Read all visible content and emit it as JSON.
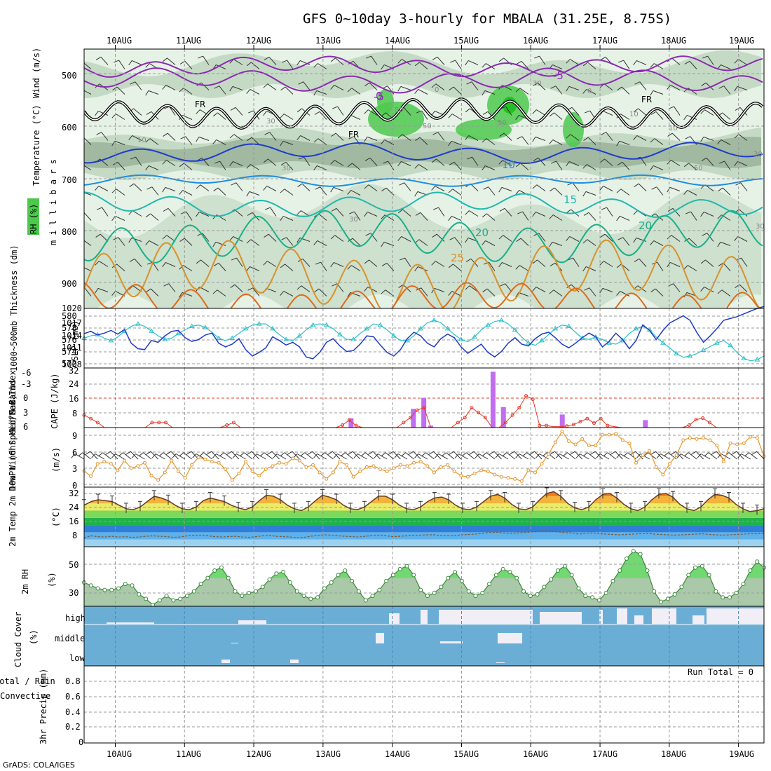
{
  "title": "GFS 0~10day 3-hourly for MBALA (31.25E, 8.75S)",
  "footer": "GrADS: COLA/IGES",
  "run_total": "Run Total = 0",
  "x_labels": [
    "10AUG",
    "11AUG",
    "12AUG",
    "13AUG",
    "14AUG",
    "15AUG",
    "16AUG",
    "17AUG",
    "18AUG",
    "19AUG"
  ],
  "colors": {
    "grid": "#9a9a9a",
    "rh_light": "#e6f2e6",
    "rh_mid": "#b9d2b9",
    "rh_dark": "#93ad93",
    "rh_green": "#4cc94c",
    "cloud": "#6aaed6",
    "cloud_clear": "#f2eef6",
    "cape": "#c26cf0",
    "li": "#e23b2b",
    "slp": "#1e3cc8",
    "thick": "#2ec0c8",
    "wind": "#e8962e",
    "rh2m": "#5cbf5c",
    "rh2m_fill": "#a9c9a9"
  },
  "panels": {
    "upper_air": {
      "ylabel_wind": "Wind (m/s)",
      "ylabel_temp": "Temperature (°C)",
      "ylabel_rh": "RH (%)",
      "ylabel_pressure": "m i l l i b a r s",
      "y_ticks": [
        "500",
        "600",
        "700",
        "800",
        "900"
      ],
      "iso_labels": [
        "-5",
        "0",
        "FR",
        "FR",
        "FR",
        "-5",
        "10",
        "15",
        "20",
        "20",
        "25",
        "10",
        "30",
        "30",
        "30",
        "50",
        "50",
        "50",
        "10",
        "50",
        "10",
        "30",
        "30",
        "0",
        "30",
        "0"
      ]
    },
    "thickness_slp": {
      "ylabel_thick": "1000~500mb Thickness (dm)",
      "ylabel_slp": "SLP (mb)",
      "left_ticks": [
        "580",
        "578",
        "576",
        "574",
        "572"
      ],
      "right_ticks": [
        "1020",
        "1017",
        "1014",
        "1011",
        "1008"
      ]
    },
    "cape_li": {
      "ylabel_li": "Lifted Index",
      "ylabel_cape": "CAPE (J/kg)",
      "left_ticks": [
        "-6",
        "-3",
        "0",
        "3",
        "6"
      ],
      "right_ticks": [
        "32",
        "24",
        "16",
        "8"
      ]
    },
    "wind10m": {
      "ylabel": "10m Wind Speed & Barbs",
      "unit": "(m/s)",
      "ticks": [
        "9",
        "6",
        "3",
        "0"
      ]
    },
    "temp2m": {
      "ylabel": "2m Temp 2m DewPt (6hr Min/Max)",
      "unit": "(°C)",
      "ticks": [
        "32",
        "24",
        "16",
        "8"
      ]
    },
    "rh2m": {
      "ylabel": "2m RH",
      "unit": "(%)",
      "ticks": [
        "50",
        "30"
      ]
    },
    "cloud": {
      "ylabel": "Cloud Cover",
      "unit": "(%)",
      "levels": [
        "high",
        "middle",
        "low"
      ]
    },
    "precip": {
      "ylabel_total": "Total / Rain",
      "ylabel_conv": "Convective",
      "ylabel": "3hr Precip (mm)",
      "ticks": [
        "0.8",
        "0.6",
        "0.4",
        "0.2",
        "0"
      ]
    }
  },
  "chart_data": [
    {
      "type": "line",
      "name": "1000-500mb thickness",
      "unit": "dm",
      "ylim": [
        571,
        581
      ],
      "values": [
        576,
        576.4,
        576.6,
        576,
        575.6,
        576.2,
        577.2,
        578,
        578.4,
        578,
        577.2,
        576.4,
        575.8,
        576,
        576.8,
        577.4,
        578,
        578.2,
        577.8,
        577,
        576,
        575.6,
        576,
        576.8,
        577.6,
        578.2,
        578.4,
        578.4,
        577.6,
        576.6,
        575.8,
        575.6,
        576.4,
        577.4,
        578.2,
        578.4,
        578.2,
        577.6,
        576.6,
        575.8,
        575.8,
        576.8,
        577.6,
        578.4,
        578.2,
        577.4,
        576.4,
        575.6,
        575.6,
        576.4,
        577.6,
        578.6,
        579,
        578.6,
        577.6,
        576.6,
        575.8,
        575.4,
        576.2,
        577.4,
        578.2,
        578.8,
        579,
        578.4,
        577.4,
        576.2,
        575.2,
        574.8,
        575.6,
        576.6,
        577.6,
        578.2,
        578,
        577,
        576,
        575.8,
        576.2,
        575.8,
        575.2,
        575,
        575.6,
        576.8,
        577.6,
        578,
        577.4,
        576.2,
        575.2,
        574.4,
        573.4,
        572.8,
        573,
        573.4,
        574,
        574.6,
        575.2,
        575.6,
        574.8,
        573.6,
        572.6,
        572.2,
        572.4,
        573
      ],
      "xrange": [
        "10AUG",
        "19AUG"
      ]
    },
    {
      "type": "line",
      "name": "SLP",
      "unit": "mb",
      "ylim": [
        1007,
        1020
      ],
      "values": [
        1014.5,
        1015,
        1014.2,
        1014.6,
        1015.2,
        1014.4,
        1015.4,
        1012.4,
        1011.2,
        1011,
        1013,
        1012.6,
        1014,
        1015,
        1015.2,
        1013.6,
        1012.8,
        1013.2,
        1014.2,
        1014.6,
        1012.4,
        1011.6,
        1012.2,
        1013.4,
        1011,
        1009.6,
        1010.4,
        1011.4,
        1013.8,
        1013,
        1012,
        1012.6,
        1011.6,
        1009.4,
        1009,
        1010.4,
        1012.6,
        1013.4,
        1011.8,
        1010.6,
        1010.8,
        1012.2,
        1014,
        1013.8,
        1012,
        1010.4,
        1009.6,
        1011,
        1013.4,
        1014.8,
        1014,
        1012.4,
        1011.6,
        1013.4,
        1014.4,
        1013.6,
        1011.6,
        1010.2,
        1011.2,
        1012.2,
        1010.4,
        1009.4,
        1010.6,
        1012.4,
        1013.6,
        1012.2,
        1011.8,
        1013.4,
        1014.4,
        1014.8,
        1013.6,
        1012.2,
        1011.4,
        1012.4,
        1013.6,
        1014.6,
        1013.8,
        1011.6,
        1012.8,
        1014.6,
        1013.2,
        1011.2,
        1013,
        1016.4,
        1015.2,
        1013.2,
        1015.2,
        1016.8,
        1017.6,
        1018.4,
        1017.4,
        1014.8,
        1012.6,
        1014,
        1015.6,
        1017.4,
        1017.8,
        1018.2,
        1018.8,
        1019.4,
        1020,
        1020.4
      ],
      "xrange": [
        "10AUG",
        "19AUG"
      ]
    },
    {
      "type": "bar",
      "name": "CAPE",
      "unit": "J/kg",
      "ylim": [
        0,
        32
      ],
      "bars": [
        {
          "day": 13.4,
          "value": 5
        },
        {
          "day": 14.3,
          "value": 10
        },
        {
          "day": 14.45,
          "value": 16
        },
        {
          "day": 14.55,
          "value": 1
        },
        {
          "day": 15.45,
          "value": 30
        },
        {
          "day": 15.6,
          "value": 11
        },
        {
          "day": 16.45,
          "value": 7
        },
        {
          "day": 17.65,
          "value": 4
        }
      ]
    },
    {
      "type": "line",
      "name": "Lifted Index",
      "ylim": [
        6,
        -6
      ],
      "values": [
        3.5,
        4.2,
        5,
        6,
        6,
        6,
        6,
        6,
        6,
        6,
        5,
        5,
        5,
        6,
        6,
        6,
        6,
        6,
        6,
        6,
        6,
        5.5,
        5,
        6,
        6,
        6,
        6,
        6,
        6,
        6,
        6,
        6,
        6,
        6,
        6,
        6,
        6,
        6,
        5.5,
        4.5,
        5.6,
        6,
        6,
        6,
        6,
        6,
        6,
        5,
        4,
        2.5,
        2,
        6,
        6,
        6,
        6,
        5,
        4,
        2,
        3,
        4,
        6,
        6,
        5,
        3.5,
        2,
        -0.4,
        0.3,
        5.6,
        5.6,
        5.8,
        5.8,
        5.7,
        5.4,
        4.8,
        4.2,
        5.1,
        4.2,
        5.6,
        5.8,
        6,
        6,
        6,
        6,
        6,
        6,
        6,
        6,
        6,
        6,
        5.5,
        4.4,
        4.1,
        5,
        6,
        6,
        6,
        6,
        6,
        6,
        6,
        6
      ],
      "xrange": [
        "10AUG",
        "19AUG"
      ]
    },
    {
      "type": "line",
      "name": "10m Wind Speed",
      "unit": "m/s",
      "ylim": [
        0,
        10
      ],
      "values": [
        2.5,
        1.5,
        3.8,
        4.2,
        3.8,
        2.6,
        4.4,
        3,
        3.4,
        4,
        1.6,
        0.8,
        2.2,
        4.4,
        2.4,
        1.2,
        3.6,
        5,
        4.6,
        4.2,
        4,
        2.8,
        0.8,
        2,
        4.2,
        2.4,
        1.6,
        2.8,
        3.4,
        4,
        3.8,
        4.8,
        4.4,
        3.2,
        3.6,
        2.2,
        1,
        2.2,
        4.2,
        3.6,
        1.4,
        2.4,
        3.2,
        3.4,
        2.8,
        2.4,
        3,
        3.6,
        3.4,
        4,
        4.2,
        3.4,
        2.2,
        3.2,
        3.6,
        2.4,
        1.6,
        1.4,
        2,
        2.6,
        2.4,
        1.8,
        1.4,
        1.2,
        1,
        0.6,
        2.6,
        2.2,
        3.8,
        5.6,
        7.8,
        9.8,
        8,
        7.4,
        8.4,
        7.2,
        7.2,
        9.2,
        9.2,
        9.4,
        8.2,
        7.6,
        4,
        5.4,
        6.2,
        3.2,
        1.8,
        3.8,
        5.4,
        8.2,
        8.6,
        8.4,
        8.6,
        8.2,
        7.2,
        4.2,
        7.6,
        7.4,
        7.6,
        8.8,
        8.6,
        5.2
      ],
      "xrange": [
        "10AUG",
        "19AUG"
      ]
    },
    {
      "type": "area",
      "name": "2m Temp",
      "unit": "°C",
      "ylim": [
        0,
        33
      ],
      "values": [
        23,
        25,
        26,
        25.5,
        25,
        23,
        21,
        20.5,
        22,
        25,
        28,
        27,
        25.5,
        23,
        21,
        20.5,
        22,
        25.5,
        27,
        26,
        25,
        23,
        21.5,
        20.5,
        22,
        25.5,
        28.5,
        28,
        26,
        23,
        21,
        20,
        22,
        25.5,
        28.5,
        27.5,
        26,
        23,
        21,
        20.5,
        22,
        25,
        28,
        28,
        26,
        23,
        21,
        20.5,
        22,
        25,
        27,
        27.5,
        26,
        23,
        21,
        20.5,
        22,
        25,
        28,
        29,
        27,
        23.5,
        21,
        20.5,
        22,
        26,
        29.5,
        30.5,
        28,
        24,
        21.5,
        20.5,
        22,
        26,
        29,
        29.5,
        27,
        23.5,
        21,
        20,
        22,
        26,
        29,
        29.5,
        27.5,
        23.5,
        21,
        20,
        22,
        26,
        29,
        28.5,
        27,
        23.5,
        21,
        19.5,
        20,
        21
      ],
      "xrange": [
        "10AUG",
        "19AUG"
      ]
    },
    {
      "type": "line",
      "name": "2m DewPt",
      "unit": "°C",
      "values": [
        5,
        6,
        5.6,
        5.4,
        5.8,
        5.4,
        5.6,
        5.2,
        5.4,
        5.8,
        6,
        5.8,
        5.6,
        5.2,
        5.4,
        6,
        6.2,
        6.4,
        6,
        5.6,
        5.4,
        5.6,
        5.8,
        5.4,
        5.2,
        5.6,
        6,
        6.2,
        5.8,
        5.6,
        5.4,
        5,
        5.2,
        5.8,
        6.2,
        6.6,
        6.4,
        6,
        5.8,
        5.6,
        5.4,
        5.8,
        6.2,
        6.4,
        6,
        5.6,
        5.8,
        6,
        6.2,
        6.4,
        6.6,
        6.6,
        6.2,
        6,
        6.2,
        6.6,
        6.8,
        7,
        7.4,
        7.8,
        8,
        7.6,
        7.4,
        7.6,
        7.8,
        8.2,
        8.4,
        8.8,
        8.6,
        8.2,
        7.8,
        7.6,
        7,
        7.4,
        7.6,
        7.2,
        7,
        6.8,
        6.6,
        6.8,
        7,
        7.2,
        7.4,
        7,
        6.8,
        6.6,
        6.4,
        6.6,
        6.8,
        7,
        7.2,
        6.8,
        6.6,
        6.4,
        6.6,
        6.8,
        7,
        7.2,
        7.2,
        7.4
      ],
      "xrange": [
        "10AUG",
        "19AUG"
      ]
    },
    {
      "type": "area",
      "name": "2m RH",
      "unit": "%",
      "ylim": [
        21,
        61
      ],
      "values": [
        37,
        35,
        33,
        32,
        32,
        33,
        36,
        35,
        29,
        26,
        22,
        25,
        28,
        25,
        26,
        28,
        31,
        36,
        40,
        45,
        47,
        40,
        31,
        28,
        30,
        31,
        34,
        39,
        43,
        44,
        37,
        31,
        28,
        26,
        27,
        33,
        37,
        42,
        45,
        38,
        31,
        25,
        28,
        32,
        38,
        42,
        46,
        48,
        42,
        32,
        28,
        30,
        34,
        40,
        44,
        38,
        31,
        28,
        30,
        36,
        42,
        46,
        44,
        40,
        31,
        28,
        29,
        34,
        39,
        45,
        48,
        42,
        33,
        28,
        27,
        25,
        30,
        38,
        45,
        53,
        58,
        56,
        45,
        31,
        24,
        26,
        29,
        34,
        42,
        47,
        48,
        42,
        31,
        27,
        27,
        30,
        36,
        45,
        51,
        47
      ],
      "xrange": [
        "10AUG",
        "19AUG"
      ]
    },
    {
      "type": "line",
      "name": "3hr Precip",
      "unit": "mm",
      "ylim": [
        0,
        0.9
      ],
      "values": [
        0
      ]
    }
  ]
}
